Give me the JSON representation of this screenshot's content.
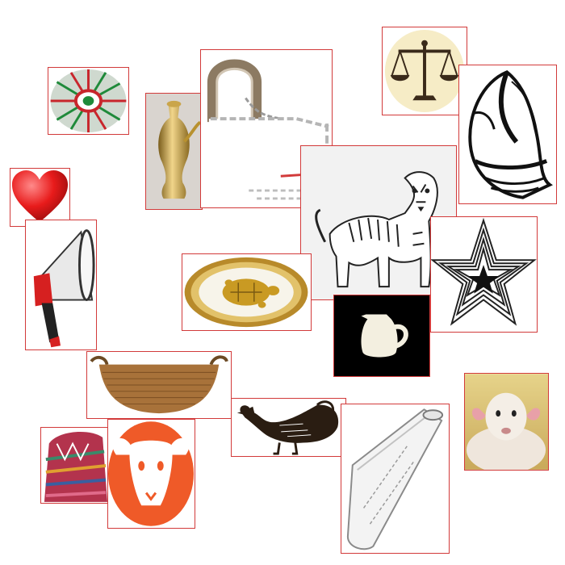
{
  "canvas": {
    "background": "#ffffff",
    "frame_color": "#d23a3a"
  },
  "symbols": [
    {
      "id": "basket-plate",
      "icon": "woven-basket-plate-icon"
    },
    {
      "id": "brass-pot",
      "icon": "brass-lota-icon"
    },
    {
      "id": "padlock",
      "icon": "padlock-icon"
    },
    {
      "id": "scales",
      "icon": "scales-of-justice-icon"
    },
    {
      "id": "conch",
      "icon": "conch-shell-icon"
    },
    {
      "id": "heart",
      "icon": "heart-icon"
    },
    {
      "id": "tiger",
      "icon": "tiger-icon"
    },
    {
      "id": "megaphone",
      "icon": "megaphone-icon"
    },
    {
      "id": "star",
      "icon": "star-icon"
    },
    {
      "id": "tortoise-plate",
      "icon": "tortoise-on-plate-icon"
    },
    {
      "id": "jug",
      "icon": "jug-icon"
    },
    {
      "id": "wok",
      "icon": "cooking-wok-icon"
    },
    {
      "id": "cap",
      "icon": "woven-cap-icon"
    },
    {
      "id": "sheep-head",
      "icon": "sheep-head-icon"
    },
    {
      "id": "rooster",
      "icon": "rooster-icon"
    },
    {
      "id": "test-tube",
      "icon": "test-tube-icon"
    },
    {
      "id": "lamb",
      "icon": "lamb-photo-icon"
    }
  ]
}
